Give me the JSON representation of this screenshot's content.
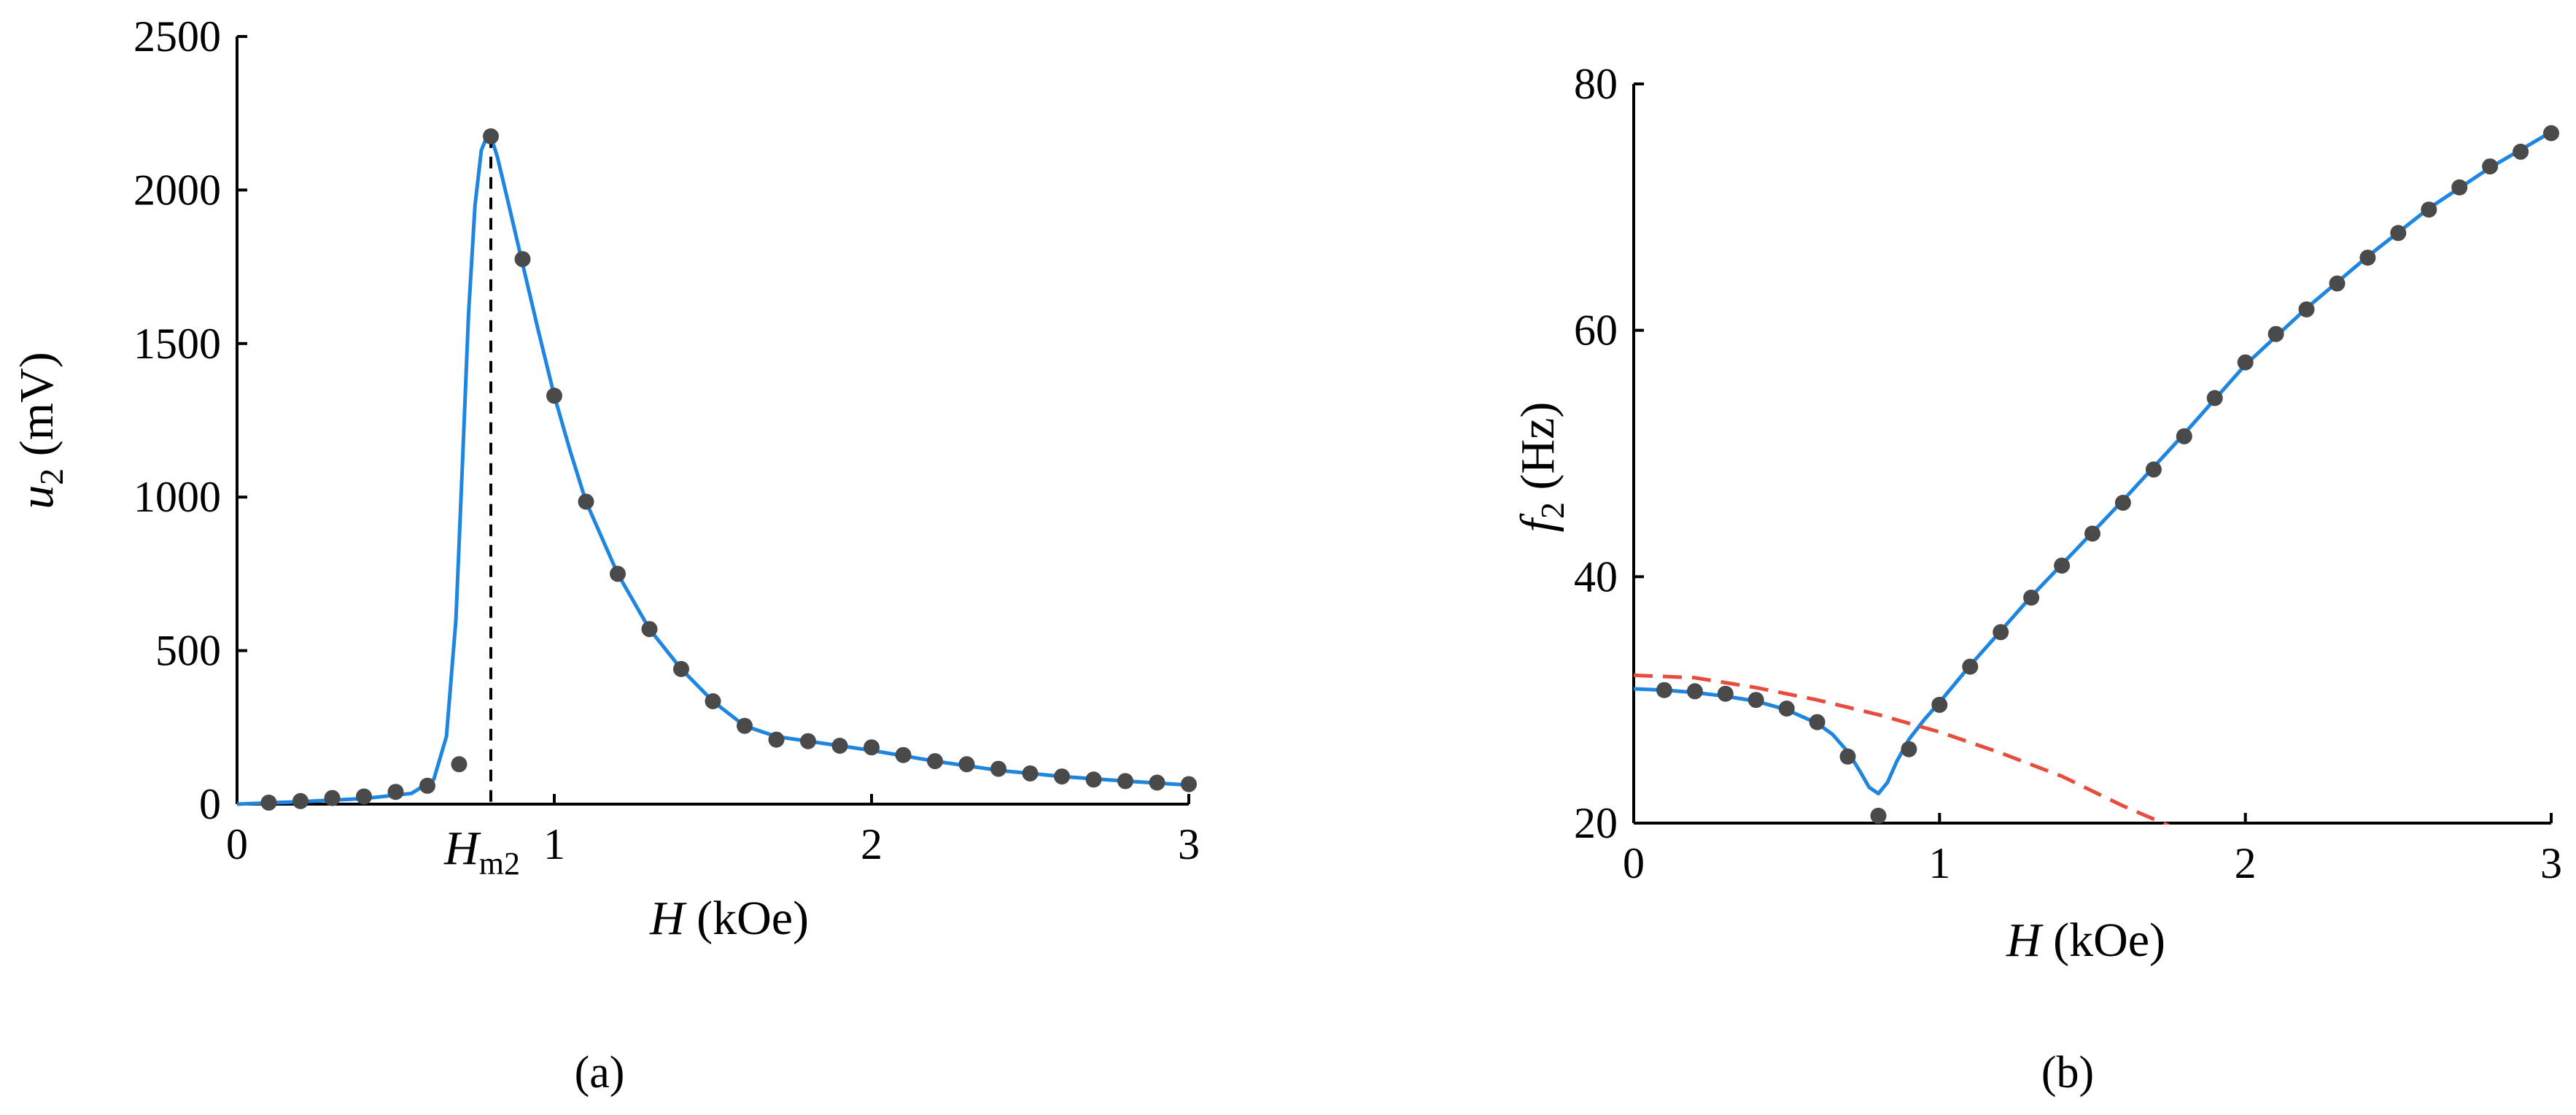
{
  "colors": {
    "fit": "#1f86e0",
    "points": "#4a4a4a",
    "dashed_red": "#e84c3d",
    "axis": "#000000"
  },
  "chart_data": [
    {
      "type": "scatter",
      "panel_label": "(a)",
      "ylabel_var": "u",
      "ylabel_sub": "2",
      "ylabel_unit": " (mV)",
      "xlabel_var": "H",
      "xlabel_unit": " (kOe)",
      "xlim": [
        0,
        3
      ],
      "ylim": [
        0,
        2500
      ],
      "xticks": [
        0,
        1,
        2,
        3
      ],
      "yticks": [
        0,
        500,
        1000,
        1500,
        2000,
        2500
      ],
      "annotation": {
        "text_main": "H",
        "text_sub": "m2",
        "x": 0.8
      },
      "series": [
        {
          "kind": "points",
          "x": [
            0.1,
            0.2,
            0.3,
            0.4,
            0.5,
            0.6,
            0.7,
            0.8,
            0.9,
            1.0,
            1.1,
            1.2,
            1.3,
            1.4,
            1.5,
            1.6,
            1.7,
            1.8,
            1.9,
            2.0,
            2.1,
            2.2,
            2.3,
            2.4,
            2.5,
            2.6,
            2.7,
            2.8,
            2.9,
            3.0
          ],
          "y": [
            5,
            10,
            20,
            25,
            40,
            60,
            130,
            2175,
            1775,
            1330,
            985,
            750,
            570,
            440,
            335,
            255,
            210,
            205,
            190,
            185,
            160,
            140,
            130,
            115,
            100,
            90,
            80,
            75,
            70,
            65
          ]
        },
        {
          "kind": "fit",
          "x": [
            0,
            0.2,
            0.4,
            0.55,
            0.62,
            0.66,
            0.69,
            0.71,
            0.73,
            0.75,
            0.77,
            0.79,
            0.8,
            0.82,
            0.85,
            0.9,
            0.95,
            1.0,
            1.05,
            1.1,
            1.2,
            1.3,
            1.4,
            1.5,
            1.6,
            1.7,
            1.8,
            1.9,
            2.0,
            2.2,
            2.4,
            2.6,
            2.8,
            3.0
          ],
          "y": [
            0,
            8,
            18,
            35,
            80,
            220,
            600,
            1100,
            1600,
            1950,
            2130,
            2180,
            2175,
            2110,
            1980,
            1760,
            1540,
            1330,
            1150,
            985,
            750,
            570,
            440,
            335,
            255,
            220,
            205,
            190,
            175,
            140,
            110,
            90,
            75,
            62
          ]
        }
      ]
    },
    {
      "type": "scatter",
      "panel_label": "(b)",
      "ylabel_var": "f",
      "ylabel_sub": "2",
      "ylabel_unit": " (Hz)",
      "xlabel_var": "H",
      "xlabel_unit": " (kOe)",
      "xlim": [
        0,
        3
      ],
      "ylim": [
        20,
        80
      ],
      "xticks": [
        0,
        1,
        2,
        3
      ],
      "yticks": [
        20,
        40,
        60,
        80
      ],
      "series": [
        {
          "kind": "points",
          "x": [
            0.1,
            0.2,
            0.3,
            0.4,
            0.5,
            0.6,
            0.7,
            0.8,
            0.9,
            1.0,
            1.1,
            1.2,
            1.3,
            1.4,
            1.5,
            1.6,
            1.7,
            1.8,
            1.9,
            2.0,
            2.1,
            2.2,
            2.3,
            2.4,
            2.5,
            2.6,
            2.7,
            2.8,
            2.9,
            3.0
          ],
          "y": [
            30.8,
            30.7,
            30.5,
            30.0,
            29.3,
            28.2,
            25.4,
            20.6,
            26.0,
            29.6,
            32.7,
            35.5,
            38.3,
            40.9,
            43.5,
            46.0,
            48.7,
            51.4,
            54.5,
            57.4,
            59.7,
            61.7,
            63.8,
            65.9,
            67.9,
            69.8,
            71.6,
            73.3,
            74.5,
            76.0
          ]
        },
        {
          "kind": "fit",
          "x": [
            0,
            0.1,
            0.2,
            0.3,
            0.4,
            0.5,
            0.6,
            0.65,
            0.7,
            0.74,
            0.77,
            0.8,
            0.83,
            0.86,
            0.9,
            0.95,
            1.0,
            1.1,
            1.2,
            1.3,
            1.4,
            1.5,
            1.6,
            1.7,
            1.8,
            1.9,
            2.0,
            2.2,
            2.4,
            2.6,
            2.8,
            3.0
          ],
          "y": [
            30.9,
            30.8,
            30.6,
            30.3,
            29.9,
            29.2,
            28.1,
            27.2,
            25.8,
            24.2,
            22.9,
            22.4,
            23.3,
            25.0,
            26.8,
            28.4,
            29.8,
            32.8,
            35.6,
            38.4,
            41.0,
            43.6,
            46.2,
            48.9,
            51.6,
            54.4,
            57.2,
            61.8,
            66.0,
            69.9,
            73.2,
            76.1
          ]
        },
        {
          "kind": "dashed",
          "x": [
            0,
            0.2,
            0.4,
            0.6,
            0.8,
            1.0,
            1.2,
            1.4,
            1.6,
            1.75
          ],
          "y": [
            32.0,
            31.8,
            31.0,
            30.0,
            28.8,
            27.4,
            25.7,
            23.8,
            21.4,
            19.8
          ]
        }
      ]
    }
  ]
}
